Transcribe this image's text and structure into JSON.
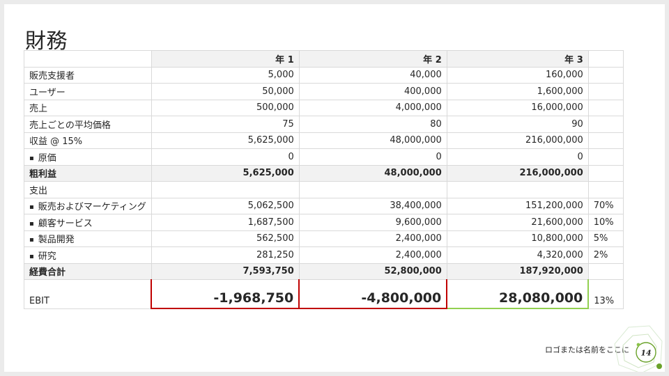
{
  "slide": {
    "title": "財務",
    "footer_text": "ロゴまたは名前をここに",
    "page_number": "14"
  },
  "table": {
    "headers": [
      "",
      "年 1",
      "年 2",
      "年 3",
      ""
    ],
    "rows": [
      {
        "label": "販売支援者",
        "bullet": false,
        "bold": false,
        "values": [
          "5,000",
          "40,000",
          "160,000"
        ],
        "pct": ""
      },
      {
        "label": "ユーザー",
        "bullet": false,
        "bold": false,
        "values": [
          "50,000",
          "400,000",
          "1,600,000"
        ],
        "pct": ""
      },
      {
        "label": "売上",
        "bullet": false,
        "bold": false,
        "values": [
          "500,000",
          "4,000,000",
          "16,000,000"
        ],
        "pct": ""
      },
      {
        "label": "売上ごとの平均価格",
        "bullet": false,
        "bold": false,
        "values": [
          "75",
          "80",
          "90"
        ],
        "pct": ""
      },
      {
        "label": "収益 @ 15%",
        "bullet": false,
        "bold": false,
        "values": [
          "5,625,000",
          "48,000,000",
          "216,000,000"
        ],
        "pct": ""
      },
      {
        "label": "原価",
        "bullet": true,
        "bold": false,
        "values": [
          "0",
          "0",
          "0"
        ],
        "pct": ""
      },
      {
        "label": "粗利益",
        "bullet": false,
        "bold": true,
        "values": [
          "5,625,000",
          "48,000,000",
          "216,000,000"
        ],
        "pct": ""
      },
      {
        "label": "支出",
        "bullet": false,
        "bold": false,
        "values": [
          "",
          "",
          ""
        ],
        "pct": ""
      },
      {
        "label": "販売およびマーケティング",
        "bullet": true,
        "bold": false,
        "values": [
          "5,062,500",
          "38,400,000",
          "151,200,000"
        ],
        "pct": "70%"
      },
      {
        "label": "顧客サービス",
        "bullet": true,
        "bold": false,
        "values": [
          "1,687,500",
          "9,600,000",
          "21,600,000"
        ],
        "pct": "10%"
      },
      {
        "label": "製品開発",
        "bullet": true,
        "bold": false,
        "values": [
          "562,500",
          "2,400,000",
          "10,800,000"
        ],
        "pct": "5%"
      },
      {
        "label": "研究",
        "bullet": true,
        "bold": false,
        "values": [
          "281,250",
          "2,400,000",
          "4,320,000"
        ],
        "pct": "2%"
      },
      {
        "label": "経費合計",
        "bullet": false,
        "bold": true,
        "values": [
          "7,593,750",
          "52,800,000",
          "187,920,000"
        ],
        "pct": ""
      }
    ],
    "ebit": {
      "label": "EBIT",
      "values": [
        "-1,968,750",
        "-4,800,000",
        "28,080,000"
      ],
      "pct": "13%"
    },
    "bullet_glyph": "▪",
    "colors": {
      "negative_border": "#c00000",
      "positive_border": "#92d050",
      "header_fill": "#f2f2f2",
      "grid": "#d9d9d9",
      "accent_green": "#6aa22a"
    }
  }
}
